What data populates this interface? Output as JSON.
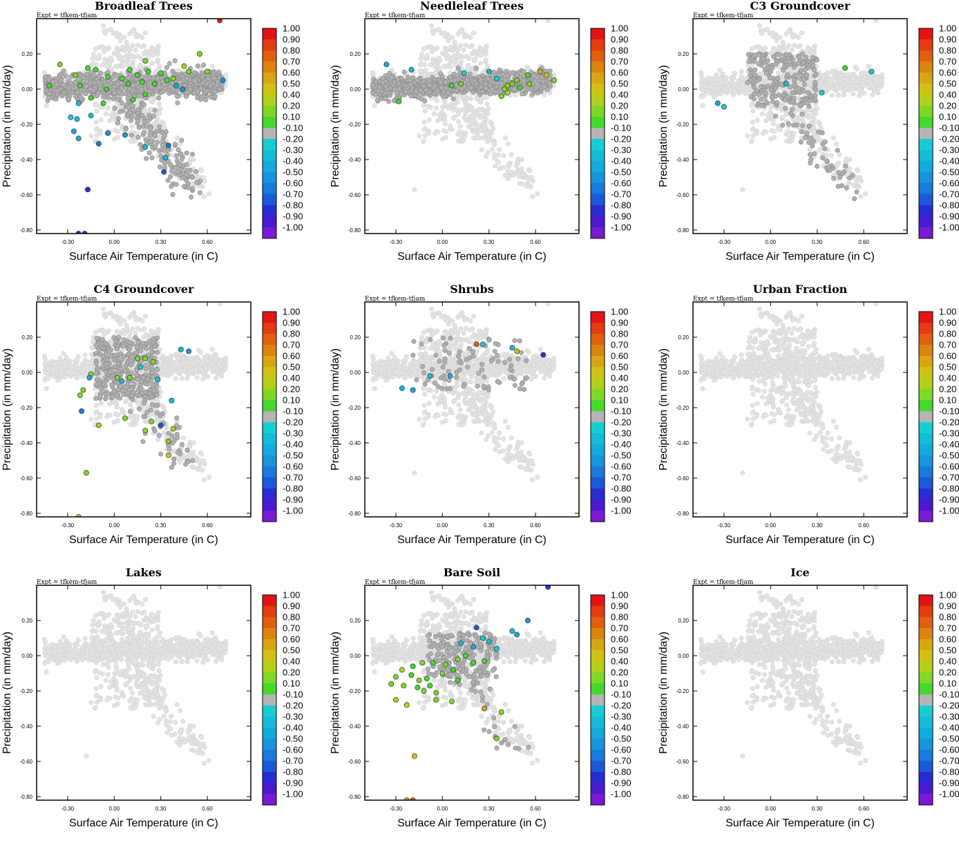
{
  "experiment_label": "Expt = tfkem-tfjam",
  "colorbar": {
    "labels": [
      "1.00",
      "0.90",
      "0.80",
      "0.70",
      "0.60",
      "0.50",
      "0.40",
      "0.20",
      "0.10",
      "-0.10",
      "-0.20",
      "-0.30",
      "-0.40",
      "-0.50",
      "-0.60",
      "-0.70",
      "-0.80",
      "-0.90",
      "-1.00"
    ],
    "colors": [
      "#e41414",
      "#e33c10",
      "#e0600e",
      "#dc8410",
      "#d8a612",
      "#d0c214",
      "#b2d01c",
      "#7ed824",
      "#44d82c",
      "#b4b4b4",
      "#14ced4",
      "#14bcd8",
      "#14aadc",
      "#1694dc",
      "#187adc",
      "#1a5ad8",
      "#2a2cd4",
      "#4a1ad0",
      "#7a1ad4"
    ]
  },
  "chart_data": [
    {
      "type": "scatter",
      "title": "Broadleaf Trees",
      "xlabel": "Surface Air Temperature (in C)",
      "ylabel": "Precipitation (in mm/day)",
      "xticks": [
        "-0.30",
        "0.00",
        "0.30",
        "0.60"
      ],
      "yticks": [
        "0.20",
        "0.00",
        "-0.20",
        "-0.40",
        "-0.60",
        "-0.80"
      ],
      "xlim": [
        -0.5,
        0.88
      ],
      "ylim": [
        -0.82,
        0.4
      ],
      "highlight_points": [
        {
          "x": 0.68,
          "y": 0.39,
          "c": 1.0
        },
        {
          "x": 0.55,
          "y": 0.2,
          "c": 0.3
        },
        {
          "x": 0.45,
          "y": 0.13,
          "c": 0.4
        },
        {
          "x": 0.48,
          "y": 0.1,
          "c": 0.3
        },
        {
          "x": 0.2,
          "y": 0.16,
          "c": 0.3
        },
        {
          "x": 0.1,
          "y": 0.11,
          "c": 0.1
        },
        {
          "x": -0.35,
          "y": 0.14,
          "c": 0.3
        },
        {
          "x": -0.17,
          "y": 0.12,
          "c": 0.1
        },
        {
          "x": -0.12,
          "y": 0.11,
          "c": 0.1
        },
        {
          "x": -0.25,
          "y": 0.08,
          "c": 0.2
        },
        {
          "x": -0.04,
          "y": 0.07,
          "c": 0.1
        },
        {
          "x": 0.05,
          "y": 0.06,
          "c": 0.1
        },
        {
          "x": 0.15,
          "y": 0.08,
          "c": 0.1
        },
        {
          "x": 0.22,
          "y": 0.1,
          "c": 0.1
        },
        {
          "x": 0.3,
          "y": 0.09,
          "c": 0.1
        },
        {
          "x": 0.38,
          "y": 0.06,
          "c": 0.2
        },
        {
          "x": 0.6,
          "y": 0.1,
          "c": 0.2
        },
        {
          "x": -0.42,
          "y": 0.02,
          "c": 0.1
        },
        {
          "x": -0.22,
          "y": 0.02,
          "c": 0.1
        },
        {
          "x": -0.05,
          "y": 0.0,
          "c": 0.1
        },
        {
          "x": 0.09,
          "y": 0.03,
          "c": 0.1
        },
        {
          "x": 0.18,
          "y": 0.04,
          "c": 0.1
        },
        {
          "x": 0.26,
          "y": 0.03,
          "c": 0.1
        },
        {
          "x": 0.34,
          "y": 0.05,
          "c": 0.1
        },
        {
          "x": -0.15,
          "y": -0.05,
          "c": 0.1
        },
        {
          "x": -0.07,
          "y": -0.08,
          "c": 0.1
        },
        {
          "x": 0.12,
          "y": -0.06,
          "c": 0.1
        },
        {
          "x": 0.2,
          "y": -0.03,
          "c": 0.1
        },
        {
          "x": -0.23,
          "y": -0.08,
          "c": -0.3
        },
        {
          "x": -0.28,
          "y": -0.16,
          "c": -0.2
        },
        {
          "x": -0.24,
          "y": -0.17,
          "c": -0.3
        },
        {
          "x": -0.15,
          "y": -0.15,
          "c": -0.3
        },
        {
          "x": -0.26,
          "y": -0.24,
          "c": -0.4
        },
        {
          "x": -0.23,
          "y": -0.28,
          "c": -0.4
        },
        {
          "x": -0.04,
          "y": -0.25,
          "c": -0.5
        },
        {
          "x": -0.1,
          "y": -0.31,
          "c": -0.6
        },
        {
          "x": 0.07,
          "y": -0.26,
          "c": -0.5
        },
        {
          "x": 0.2,
          "y": -0.33,
          "c": -0.3
        },
        {
          "x": 0.35,
          "y": -0.32,
          "c": -0.6
        },
        {
          "x": 0.33,
          "y": -0.39,
          "c": -0.3
        },
        {
          "x": 0.32,
          "y": -0.47,
          "c": -0.7
        },
        {
          "x": 0.4,
          "y": 0.02,
          "c": -0.4
        },
        {
          "x": 0.44,
          "y": 0.0,
          "c": -0.5
        },
        {
          "x": 0.7,
          "y": 0.05,
          "c": -0.5
        },
        {
          "x": -0.17,
          "y": -0.57,
          "c": -0.8
        },
        {
          "x": -0.23,
          "y": -0.82,
          "c": -0.9
        },
        {
          "x": -0.19,
          "y": -0.82,
          "c": -0.8
        }
      ]
    },
    {
      "type": "scatter",
      "title": "Needleleaf Trees",
      "xlabel": "Surface Air Temperature (in C)",
      "ylabel": "Precipitation (in mm/day)",
      "xticks": [
        "-0.30",
        "0.00",
        "0.30",
        "0.60"
      ],
      "yticks": [
        "0.20",
        "0.00",
        "-0.20",
        "-0.40",
        "-0.60",
        "-0.80"
      ],
      "xlim": [
        -0.5,
        0.88
      ],
      "ylim": [
        -0.82,
        0.4
      ],
      "highlight_points": [
        {
          "x": -0.36,
          "y": 0.14,
          "c": -0.4
        },
        {
          "x": -0.2,
          "y": 0.11,
          "c": -0.3
        },
        {
          "x": 0.14,
          "y": 0.09,
          "c": -0.2
        },
        {
          "x": 0.3,
          "y": 0.1,
          "c": -0.3
        },
        {
          "x": 0.63,
          "y": 0.1,
          "c": 0.6
        },
        {
          "x": 0.67,
          "y": 0.08,
          "c": 0.5
        },
        {
          "x": 0.72,
          "y": 0.05,
          "c": 0.3
        },
        {
          "x": 0.55,
          "y": 0.08,
          "c": 0.1
        },
        {
          "x": 0.48,
          "y": 0.05,
          "c": 0.3
        },
        {
          "x": 0.45,
          "y": 0.03,
          "c": 0.2
        },
        {
          "x": 0.42,
          "y": 0.02,
          "c": 0.2
        },
        {
          "x": 0.4,
          "y": 0.0,
          "c": 0.3
        },
        {
          "x": 0.42,
          "y": -0.02,
          "c": 0.4
        },
        {
          "x": 0.38,
          "y": -0.04,
          "c": 0.3
        },
        {
          "x": 0.5,
          "y": 0.01,
          "c": 0.1
        },
        {
          "x": 0.56,
          "y": 0.03,
          "c": 0.2
        },
        {
          "x": 0.06,
          "y": 0.02,
          "c": 0.1
        },
        {
          "x": 0.12,
          "y": 0.03,
          "c": 0.2
        },
        {
          "x": -0.28,
          "y": -0.07,
          "c": 0.1
        },
        {
          "x": 0.35,
          "y": 0.06,
          "c": -0.2
        }
      ]
    },
    {
      "type": "scatter",
      "title": "C3 Groundcover",
      "xlabel": "Surface Air Temperature (in C)",
      "ylabel": "Precipitation (in mm/day)",
      "xticks": [
        "-0.30",
        "0.00",
        "0.30",
        "0.60"
      ],
      "yticks": [
        "0.20",
        "0.00",
        "-0.20",
        "-0.40",
        "-0.60",
        "-0.80"
      ],
      "xlim": [
        -0.5,
        0.88
      ],
      "ylim": [
        -0.82,
        0.4
      ],
      "highlight_points": [
        {
          "x": 0.48,
          "y": 0.12,
          "c": 0.1
        },
        {
          "x": 0.65,
          "y": 0.1,
          "c": -0.2
        },
        {
          "x": 0.1,
          "y": 0.03,
          "c": -0.3
        },
        {
          "x": -0.34,
          "y": -0.08,
          "c": -0.4
        },
        {
          "x": -0.3,
          "y": -0.1,
          "c": -0.2
        },
        {
          "x": 0.33,
          "y": -0.02,
          "c": -0.2
        }
      ]
    },
    {
      "type": "scatter",
      "title": "C4 Groundcover",
      "xlabel": "Surface Air Temperature (in C)",
      "ylabel": "Precipitation (in mm/day)",
      "xticks": [
        "-0.30",
        "0.00",
        "0.30",
        "0.60"
      ],
      "yticks": [
        "0.20",
        "0.00",
        "-0.20",
        "-0.40",
        "-0.60",
        "-0.80"
      ],
      "xlim": [
        -0.5,
        0.88
      ],
      "ylim": [
        -0.82,
        0.4
      ],
      "highlight_points": [
        {
          "x": 0.48,
          "y": 0.12,
          "c": -0.5
        },
        {
          "x": 0.43,
          "y": 0.13,
          "c": -0.3
        },
        {
          "x": 0.15,
          "y": 0.08,
          "c": 0.2
        },
        {
          "x": 0.2,
          "y": 0.08,
          "c": 0.2
        },
        {
          "x": 0.25,
          "y": 0.06,
          "c": 0.2
        },
        {
          "x": 0.17,
          "y": 0.03,
          "c": -0.2
        },
        {
          "x": 0.1,
          "y": -0.03,
          "c": 0.3
        },
        {
          "x": 0.05,
          "y": -0.05,
          "c": -0.3
        },
        {
          "x": -0.15,
          "y": -0.01,
          "c": 0.3
        },
        {
          "x": -0.16,
          "y": -0.03,
          "c": -0.4
        },
        {
          "x": 0.02,
          "y": -0.03,
          "c": 0.3
        },
        {
          "x": 0.28,
          "y": -0.04,
          "c": -0.3
        },
        {
          "x": 0.37,
          "y": -0.16,
          "c": -0.3
        },
        {
          "x": -0.2,
          "y": -0.1,
          "c": 0.2
        },
        {
          "x": -0.21,
          "y": -0.22,
          "c": -0.6
        },
        {
          "x": -0.22,
          "y": -0.13,
          "c": 0.2
        },
        {
          "x": 0.07,
          "y": -0.26,
          "c": 0.3
        },
        {
          "x": -0.1,
          "y": -0.3,
          "c": 0.4
        },
        {
          "x": 0.24,
          "y": -0.28,
          "c": 0.2
        },
        {
          "x": 0.3,
          "y": -0.3,
          "c": -0.7
        },
        {
          "x": 0.38,
          "y": -0.32,
          "c": 0.4
        },
        {
          "x": 0.2,
          "y": -0.33,
          "c": 0.2
        },
        {
          "x": 0.35,
          "y": -0.39,
          "c": 0.3
        },
        {
          "x": 0.35,
          "y": -0.47,
          "c": 0.5
        },
        {
          "x": -0.18,
          "y": -0.57,
          "c": 0.2
        },
        {
          "x": -0.23,
          "y": -0.82,
          "c": 0.3
        }
      ]
    },
    {
      "type": "scatter",
      "title": "Shrubs",
      "xlabel": "Surface Air Temperature (in C)",
      "ylabel": "Precipitation (in mm/day)",
      "xticks": [
        "-0.30",
        "0.00",
        "0.30",
        "0.60"
      ],
      "yticks": [
        "0.20",
        "0.00",
        "-0.20",
        "-0.40",
        "-0.60",
        "-0.80"
      ],
      "xlim": [
        -0.5,
        0.88
      ],
      "ylim": [
        -0.82,
        0.4
      ],
      "highlight_points": [
        {
          "x": 0.22,
          "y": 0.16,
          "c": 0.8
        },
        {
          "x": 0.26,
          "y": 0.16,
          "c": -0.2
        },
        {
          "x": 0.45,
          "y": 0.14,
          "c": -0.3
        },
        {
          "x": 0.48,
          "y": 0.12,
          "c": 0.5
        },
        {
          "x": 0.65,
          "y": 0.1,
          "c": -0.8
        },
        {
          "x": -0.26,
          "y": -0.09,
          "c": -0.3
        },
        {
          "x": -0.19,
          "y": -0.1,
          "c": -0.4
        },
        {
          "x": -0.08,
          "y": -0.02,
          "c": -0.3
        },
        {
          "x": 0.05,
          "y": -0.02,
          "c": -0.4
        }
      ]
    },
    {
      "type": "scatter",
      "title": "Urban Fraction",
      "xlabel": "Surface Air Temperature (in C)",
      "ylabel": "Precipitation (in mm/day)",
      "xticks": [
        "-0.30",
        "0.00",
        "0.30",
        "0.60"
      ],
      "yticks": [
        "0.20",
        "0.00",
        "-0.20",
        "-0.40",
        "-0.60",
        "-0.80"
      ],
      "xlim": [
        -0.5,
        0.88
      ],
      "ylim": [
        -0.82,
        0.4
      ],
      "highlight_points": []
    },
    {
      "type": "scatter",
      "title": "Lakes",
      "xlabel": "Surface Air Temperature (in C)",
      "ylabel": "Precipitation (in mm/day)",
      "xticks": [
        "-0.30",
        "0.00",
        "0.30",
        "0.60"
      ],
      "yticks": [
        "0.20",
        "0.00",
        "-0.20",
        "-0.40",
        "-0.60",
        "-0.80"
      ],
      "xlim": [
        -0.5,
        0.88
      ],
      "ylim": [
        -0.82,
        0.4
      ],
      "highlight_points": []
    },
    {
      "type": "scatter",
      "title": "Bare Soil",
      "xlabel": "Surface Air Temperature (in C)",
      "ylabel": "Precipitation (in mm/day)",
      "xticks": [
        "-0.30",
        "0.00",
        "0.30",
        "0.60"
      ],
      "yticks": [
        "0.20",
        "0.00",
        "-0.20",
        "-0.40",
        "-0.60",
        "-0.80"
      ],
      "xlim": [
        -0.5,
        0.88
      ],
      "ylim": [
        -0.82,
        0.4
      ],
      "highlight_points": [
        {
          "x": 0.68,
          "y": 0.39,
          "c": -0.8
        },
        {
          "x": 0.55,
          "y": 0.2,
          "c": -0.5
        },
        {
          "x": 0.45,
          "y": 0.14,
          "c": -0.3
        },
        {
          "x": 0.48,
          "y": 0.12,
          "c": -0.4
        },
        {
          "x": 0.22,
          "y": 0.16,
          "c": -0.7
        },
        {
          "x": 0.26,
          "y": 0.1,
          "c": -0.2
        },
        {
          "x": 0.3,
          "y": 0.08,
          "c": -0.3
        },
        {
          "x": 0.12,
          "y": 0.07,
          "c": -0.3
        },
        {
          "x": 0.2,
          "y": 0.05,
          "c": -0.4
        },
        {
          "x": 0.35,
          "y": 0.04,
          "c": -0.2
        },
        {
          "x": 0.15,
          "y": 0.0,
          "c": 0.1
        },
        {
          "x": 0.1,
          "y": -0.02,
          "c": 0.2
        },
        {
          "x": 0.2,
          "y": -0.04,
          "c": 0.1
        },
        {
          "x": 0.27,
          "y": -0.03,
          "c": 0.1
        },
        {
          "x": 0.02,
          "y": -0.05,
          "c": 0.2
        },
        {
          "x": -0.06,
          "y": -0.04,
          "c": 0.1
        },
        {
          "x": -0.13,
          "y": -0.04,
          "c": 0.2
        },
        {
          "x": -0.19,
          "y": -0.06,
          "c": 0.1
        },
        {
          "x": -0.26,
          "y": -0.08,
          "c": 0.4
        },
        {
          "x": -0.3,
          "y": -0.12,
          "c": 0.3
        },
        {
          "x": -0.2,
          "y": -0.11,
          "c": 0.1
        },
        {
          "x": -0.15,
          "y": -0.14,
          "c": 0.2
        },
        {
          "x": -0.1,
          "y": -0.13,
          "c": 0.1
        },
        {
          "x": 0.0,
          "y": -0.1,
          "c": 0.2
        },
        {
          "x": 0.07,
          "y": -0.08,
          "c": 0.1
        },
        {
          "x": -0.33,
          "y": -0.16,
          "c": 0.3
        },
        {
          "x": -0.25,
          "y": -0.17,
          "c": 0.2
        },
        {
          "x": -0.16,
          "y": -0.18,
          "c": 0.1
        },
        {
          "x": -0.08,
          "y": -0.17,
          "c": 0.1
        },
        {
          "x": -0.12,
          "y": -0.2,
          "c": 0.2
        },
        {
          "x": -0.04,
          "y": -0.21,
          "c": 0.2
        },
        {
          "x": 0.1,
          "y": -0.14,
          "c": 0.1
        },
        {
          "x": -0.3,
          "y": -0.25,
          "c": 0.4
        },
        {
          "x": -0.23,
          "y": -0.28,
          "c": 0.4
        },
        {
          "x": -0.04,
          "y": -0.25,
          "c": 0.3
        },
        {
          "x": 0.06,
          "y": -0.26,
          "c": 0.2
        },
        {
          "x": 0.27,
          "y": -0.3,
          "c": 0.6
        },
        {
          "x": 0.38,
          "y": -0.32,
          "c": 0.2
        },
        {
          "x": 0.35,
          "y": -0.47,
          "c": 0.2
        },
        {
          "x": -0.18,
          "y": -0.57,
          "c": 0.5
        },
        {
          "x": -0.23,
          "y": -0.82,
          "c": 0.6
        },
        {
          "x": -0.19,
          "y": -0.82,
          "c": 0.8
        }
      ]
    },
    {
      "type": "scatter",
      "title": "Ice",
      "xlabel": "Surface Air Temperature (in C)",
      "ylabel": "Precipitation (in mm/day)",
      "xticks": [
        "-0.30",
        "0.00",
        "0.30",
        "0.60"
      ],
      "yticks": [
        "0.20",
        "0.00",
        "-0.20",
        "-0.40",
        "-0.60",
        "-0.80"
      ],
      "xlim": [
        -0.5,
        0.88
      ],
      "ylim": [
        -0.82,
        0.4
      ],
      "highlight_points": []
    }
  ]
}
